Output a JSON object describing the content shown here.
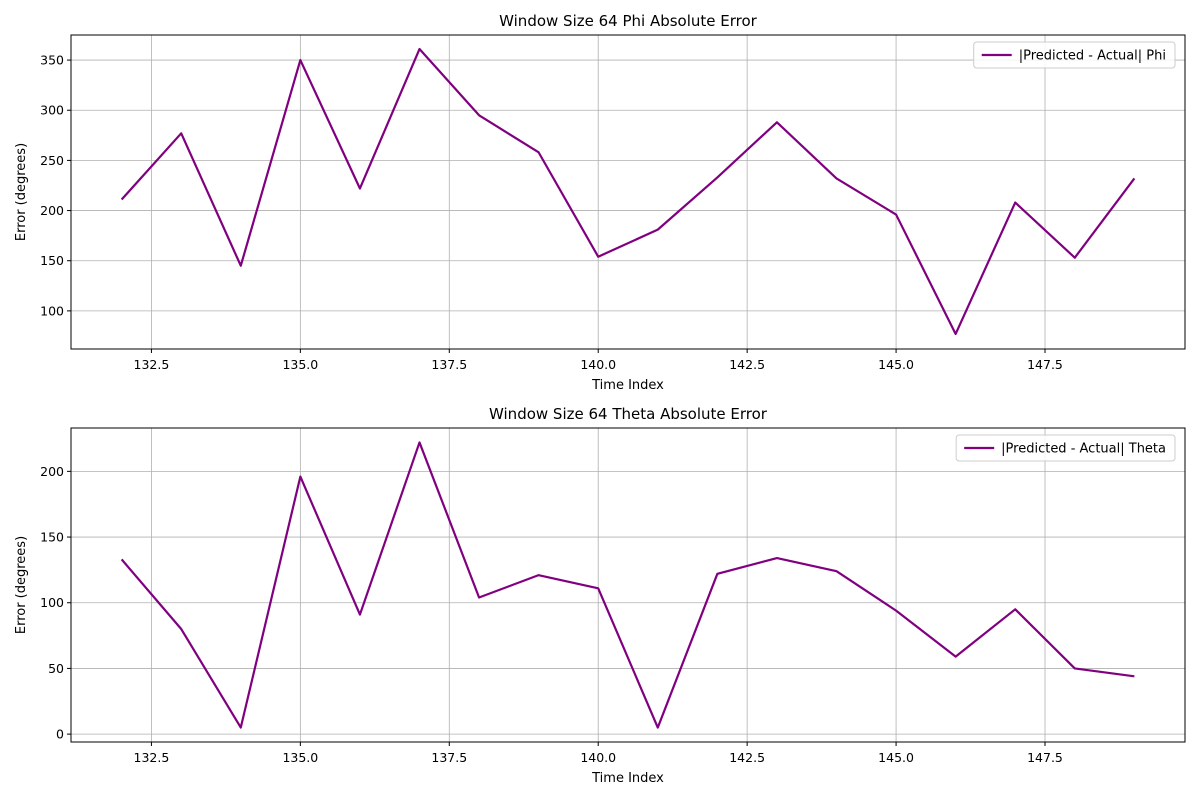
{
  "chart_data": [
    {
      "type": "line",
      "title": "Window Size 64 Phi Absolute Error",
      "xlabel": "Time Index",
      "ylabel": "Error (degrees)",
      "xlim": [
        131.15,
        149.85
      ],
      "ylim": [
        62,
        375
      ],
      "xticks": [
        "132.5",
        "135.0",
        "137.5",
        "140.0",
        "142.5",
        "145.0",
        "147.5"
      ],
      "xtick_values": [
        132.5,
        135.0,
        137.5,
        140.0,
        142.5,
        145.0,
        147.5
      ],
      "yticks": [
        "100",
        "150",
        "200",
        "250",
        "300",
        "350"
      ],
      "ytick_values": [
        100,
        150,
        200,
        250,
        300,
        350
      ],
      "grid": true,
      "legend_position": "top-right",
      "series": [
        {
          "name": "|Predicted - Actual| Phi",
          "color": "#800080",
          "x": [
            132,
            133,
            134,
            135,
            136,
            137,
            138,
            139,
            140,
            141,
            142,
            143,
            144,
            145,
            146,
            147,
            148,
            149
          ],
          "y": [
            211,
            277,
            145,
            350,
            222,
            361,
            295,
            258,
            154,
            181,
            233,
            288,
            232,
            196,
            77,
            208,
            153,
            232
          ]
        }
      ]
    },
    {
      "type": "line",
      "title": "Window Size 64 Theta Absolute Error",
      "xlabel": "Time Index",
      "ylabel": "Error (degrees)",
      "xlim": [
        131.15,
        149.85
      ],
      "ylim": [
        -6,
        233
      ],
      "xticks": [
        "132.5",
        "135.0",
        "137.5",
        "140.0",
        "142.5",
        "145.0",
        "147.5"
      ],
      "xtick_values": [
        132.5,
        135.0,
        137.5,
        140.0,
        142.5,
        145.0,
        147.5
      ],
      "yticks": [
        "0",
        "50",
        "100",
        "150",
        "200"
      ],
      "ytick_values": [
        0,
        50,
        100,
        150,
        200
      ],
      "grid": true,
      "legend_position": "top-right",
      "series": [
        {
          "name": "|Predicted - Actual| Theta",
          "color": "#800080",
          "x": [
            132,
            133,
            134,
            135,
            136,
            137,
            138,
            139,
            140,
            141,
            142,
            143,
            144,
            145,
            146,
            147,
            148,
            149
          ],
          "y": [
            133,
            80,
            5,
            196,
            91,
            222,
            104,
            121,
            111,
            5,
            122,
            134,
            124,
            94,
            59,
            95,
            50,
            44
          ]
        }
      ]
    }
  ]
}
